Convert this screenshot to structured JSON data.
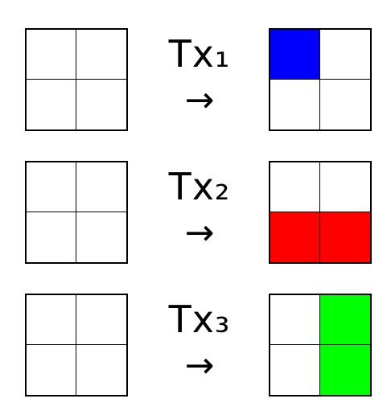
{
  "transforms": [
    {
      "label": "Tx₁",
      "arrow": "→",
      "output_cells": [
        "#0000ff",
        "#ffffff",
        "#ffffff",
        "#ffffff"
      ]
    },
    {
      "label": "Tx₂",
      "arrow": "→",
      "output_cells": [
        "#ffffff",
        "#ffffff",
        "#ff0000",
        "#ff0000"
      ]
    },
    {
      "label": "Tx₃",
      "arrow": "→",
      "output_cells": [
        "#ffffff",
        "#00ff00",
        "#ffffff",
        "#00ff00"
      ]
    }
  ],
  "colors": {
    "blank": "#ffffff",
    "border": "#000000"
  }
}
